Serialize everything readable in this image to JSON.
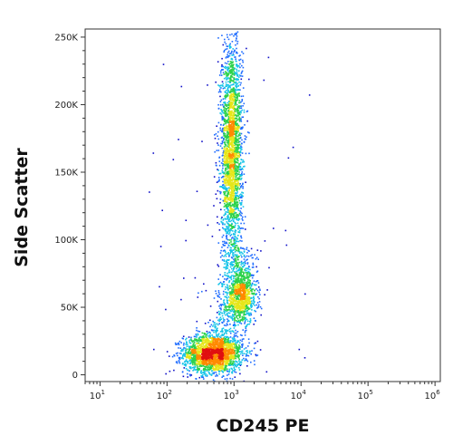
{
  "chart_data": {
    "type": "scatter",
    "subtype": "flow-cytometry density dot plot",
    "title": "",
    "xlabel": "CD245 PE",
    "ylabel": "Side Scatter",
    "x_scale": "log",
    "xlim": [
      6,
      1200000
    ],
    "ylim": [
      -5000,
      256000
    ],
    "x_ticks": [
      {
        "value": 10,
        "base": "10",
        "exp": "1"
      },
      {
        "value": 100,
        "base": "10",
        "exp": "2"
      },
      {
        "value": 1000,
        "base": "10",
        "exp": "3"
      },
      {
        "value": 10000,
        "base": "10",
        "exp": "4"
      },
      {
        "value": 100000,
        "base": "10",
        "exp": "5"
      },
      {
        "value": 1000000,
        "base": "10",
        "exp": "6"
      }
    ],
    "y_ticks": [
      {
        "value": 0,
        "label": "0"
      },
      {
        "value": 50000,
        "label": "50K"
      },
      {
        "value": 100000,
        "label": "100K"
      },
      {
        "value": 150000,
        "label": "150K"
      },
      {
        "value": 200000,
        "label": "200K"
      },
      {
        "value": 250000,
        "label": "250K"
      }
    ],
    "populations": [
      {
        "name": "",
        "x_center": 480,
        "y_center": 16000,
        "x_spread_log": 0.22,
        "y_spread": 7000,
        "count": 2200
      },
      {
        "name": "",
        "x_center": 1300,
        "y_center": 58000,
        "x_spread_log": 0.11,
        "y_spread": 10000,
        "count": 900
      },
      {
        "name": "",
        "x_center": 900,
        "y_center": 165000,
        "x_spread_log": 0.08,
        "y_spread": 42000,
        "count": 2600
      }
    ],
    "color_scale": [
      "#1010c8",
      "#1e6cff",
      "#17c4e8",
      "#2cd24a",
      "#e6e61a",
      "#ff8a00",
      "#e01010"
    ],
    "grid": false,
    "legend": "none"
  }
}
